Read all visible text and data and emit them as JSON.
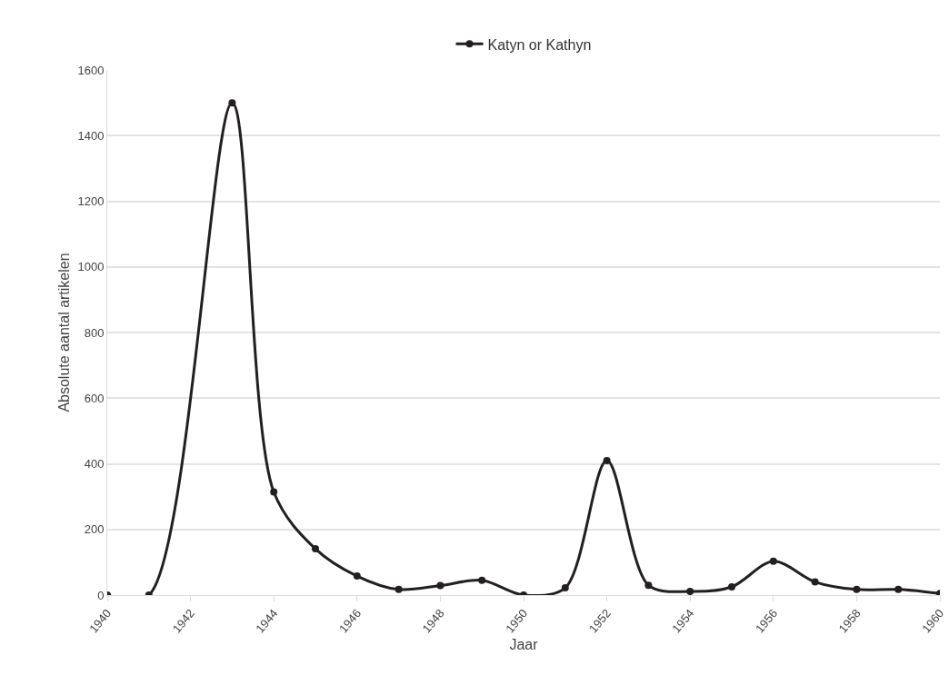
{
  "chart_data": {
    "type": "line",
    "xlabel": "Jaar",
    "ylabel": "Absolute aantal artikelen",
    "series": [
      {
        "name": "Katyn or Kathyn",
        "color": "#231f20",
        "x": [
          1940,
          1941,
          1943,
          1944,
          1945,
          1946,
          1947,
          1948,
          1949,
          1950,
          1951,
          1952,
          1953,
          1954,
          1955,
          1956,
          1957,
          1958,
          1959,
          1960
        ],
        "values": [
          0,
          0,
          1500,
          314,
          141,
          58,
          17,
          29,
          45,
          0,
          22,
          410,
          30,
          11,
          25,
          103,
          40,
          17,
          17,
          5
        ]
      }
    ],
    "xlim": [
      1940,
      1960
    ],
    "xticks": [
      1940,
      1942,
      1944,
      1946,
      1948,
      1950,
      1952,
      1954,
      1956,
      1958,
      1960
    ],
    "ylim": [
      0,
      1600
    ],
    "yticks": [
      0,
      200,
      400,
      600,
      800,
      1000,
      1200,
      1400,
      1600
    ],
    "grid": "y",
    "legend": "top",
    "marker": "circle",
    "line_style": "solid"
  }
}
